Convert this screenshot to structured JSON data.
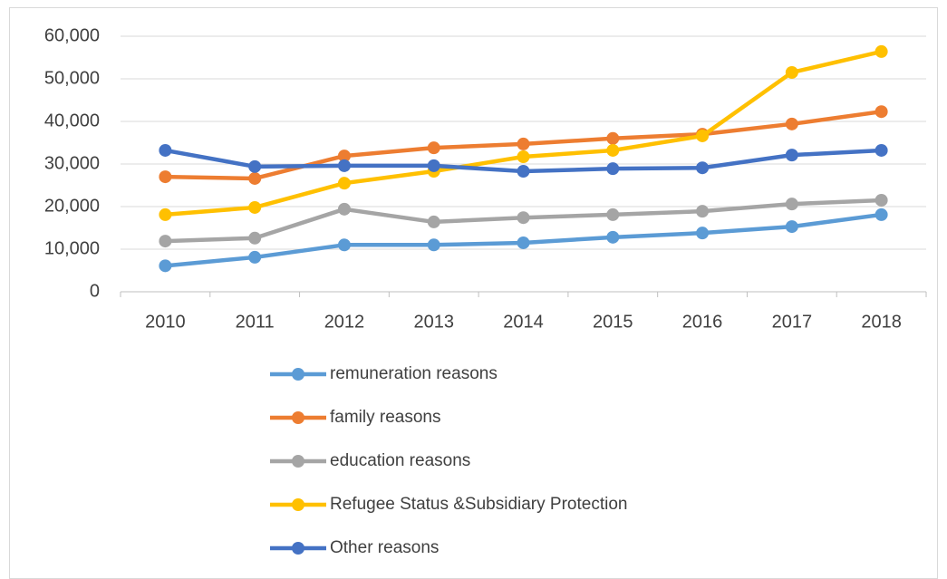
{
  "chart_data": {
    "type": "line",
    "categories": [
      "2010",
      "2011",
      "2012",
      "2013",
      "2014",
      "2015",
      "2016",
      "2017",
      "2018"
    ],
    "series": [
      {
        "name": "remuneration reasons",
        "color": "#5b9bd5",
        "values": [
          6100,
          8100,
          11000,
          11000,
          11500,
          12800,
          13800,
          15300,
          18100
        ]
      },
      {
        "name": "family reasons",
        "color": "#ed7d31",
        "values": [
          27000,
          26600,
          31900,
          33800,
          34700,
          36000,
          37000,
          39400,
          42300
        ]
      },
      {
        "name": "education reasons",
        "color": "#a5a5a5",
        "values": [
          11900,
          12600,
          19400,
          16400,
          17400,
          18100,
          18900,
          20600,
          21500
        ]
      },
      {
        "name": "Refugee Status &Subsidiary Protection",
        "color": "#ffc000",
        "values": [
          18100,
          19800,
          25500,
          28300,
          31700,
          33200,
          36600,
          51500,
          56400
        ]
      },
      {
        "name": "Other reasons",
        "color": "#4472c4",
        "values": [
          33200,
          29400,
          29600,
          29600,
          28300,
          28900,
          29100,
          32100,
          33200
        ]
      }
    ],
    "ylim": [
      0,
      60000
    ],
    "yticks": [
      0,
      {
        "value": 10000,
        "label": "10,000"
      },
      {
        "value": 20000,
        "label": "20,000"
      },
      {
        "value": 30000,
        "label": "30,000"
      },
      {
        "value": 40000,
        "label": "40,000"
      },
      {
        "value": 50000,
        "label": "50,000"
      },
      {
        "value": 60000,
        "label": "60,000"
      }
    ],
    "grid": true,
    "legend": "bottom"
  }
}
